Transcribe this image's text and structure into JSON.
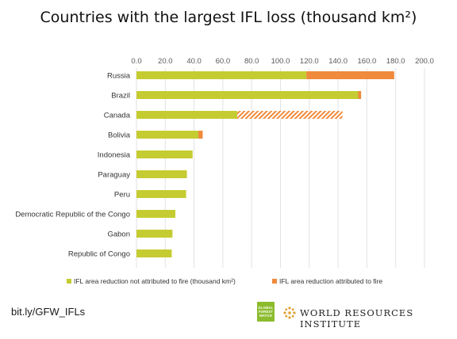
{
  "chart_data": {
    "type": "bar",
    "orientation": "horizontal",
    "stacked": true,
    "title": "Countries with the largest IFL loss (thousand km²)",
    "categories": [
      "Russia",
      "Brazil",
      "Canada",
      "Bolivia",
      "Indonesia",
      "Paraguay",
      "Peru",
      "Democratic Republic of the Congo",
      "Gabon",
      "Republic of Congo"
    ],
    "series": [
      {
        "name": "IFL area reduction  not attributed to fire (thousand  km²)",
        "color": "#c5cc32",
        "values": [
          118,
          154,
          70,
          43,
          39,
          35,
          34.5,
          27,
          25,
          24.5
        ]
      },
      {
        "name": "IFL area reduction  attributed  to fire",
        "color": "#f08a3c",
        "values": [
          61,
          2,
          73,
          3,
          0,
          0,
          0,
          0,
          0,
          0
        ],
        "hatched": [
          false,
          false,
          true,
          false,
          false,
          false,
          false,
          false,
          false,
          false
        ]
      }
    ],
    "xlim": [
      0,
      200
    ],
    "xticks": [
      "0.0",
      "20.0",
      "40.0",
      "60.0",
      "80.0",
      "100.0",
      "120.0",
      "140.0",
      "160.0",
      "180.0",
      "200.0"
    ],
    "grid": true,
    "legend_position": "bottom"
  },
  "footer": {
    "short_link": "bit.ly/GFW_IFLs",
    "gfw_logo_lines": [
      "GLOBAL",
      "FOREST",
      "WATCH"
    ],
    "org_name": "WORLD RESOURCES INSTITUTE"
  }
}
